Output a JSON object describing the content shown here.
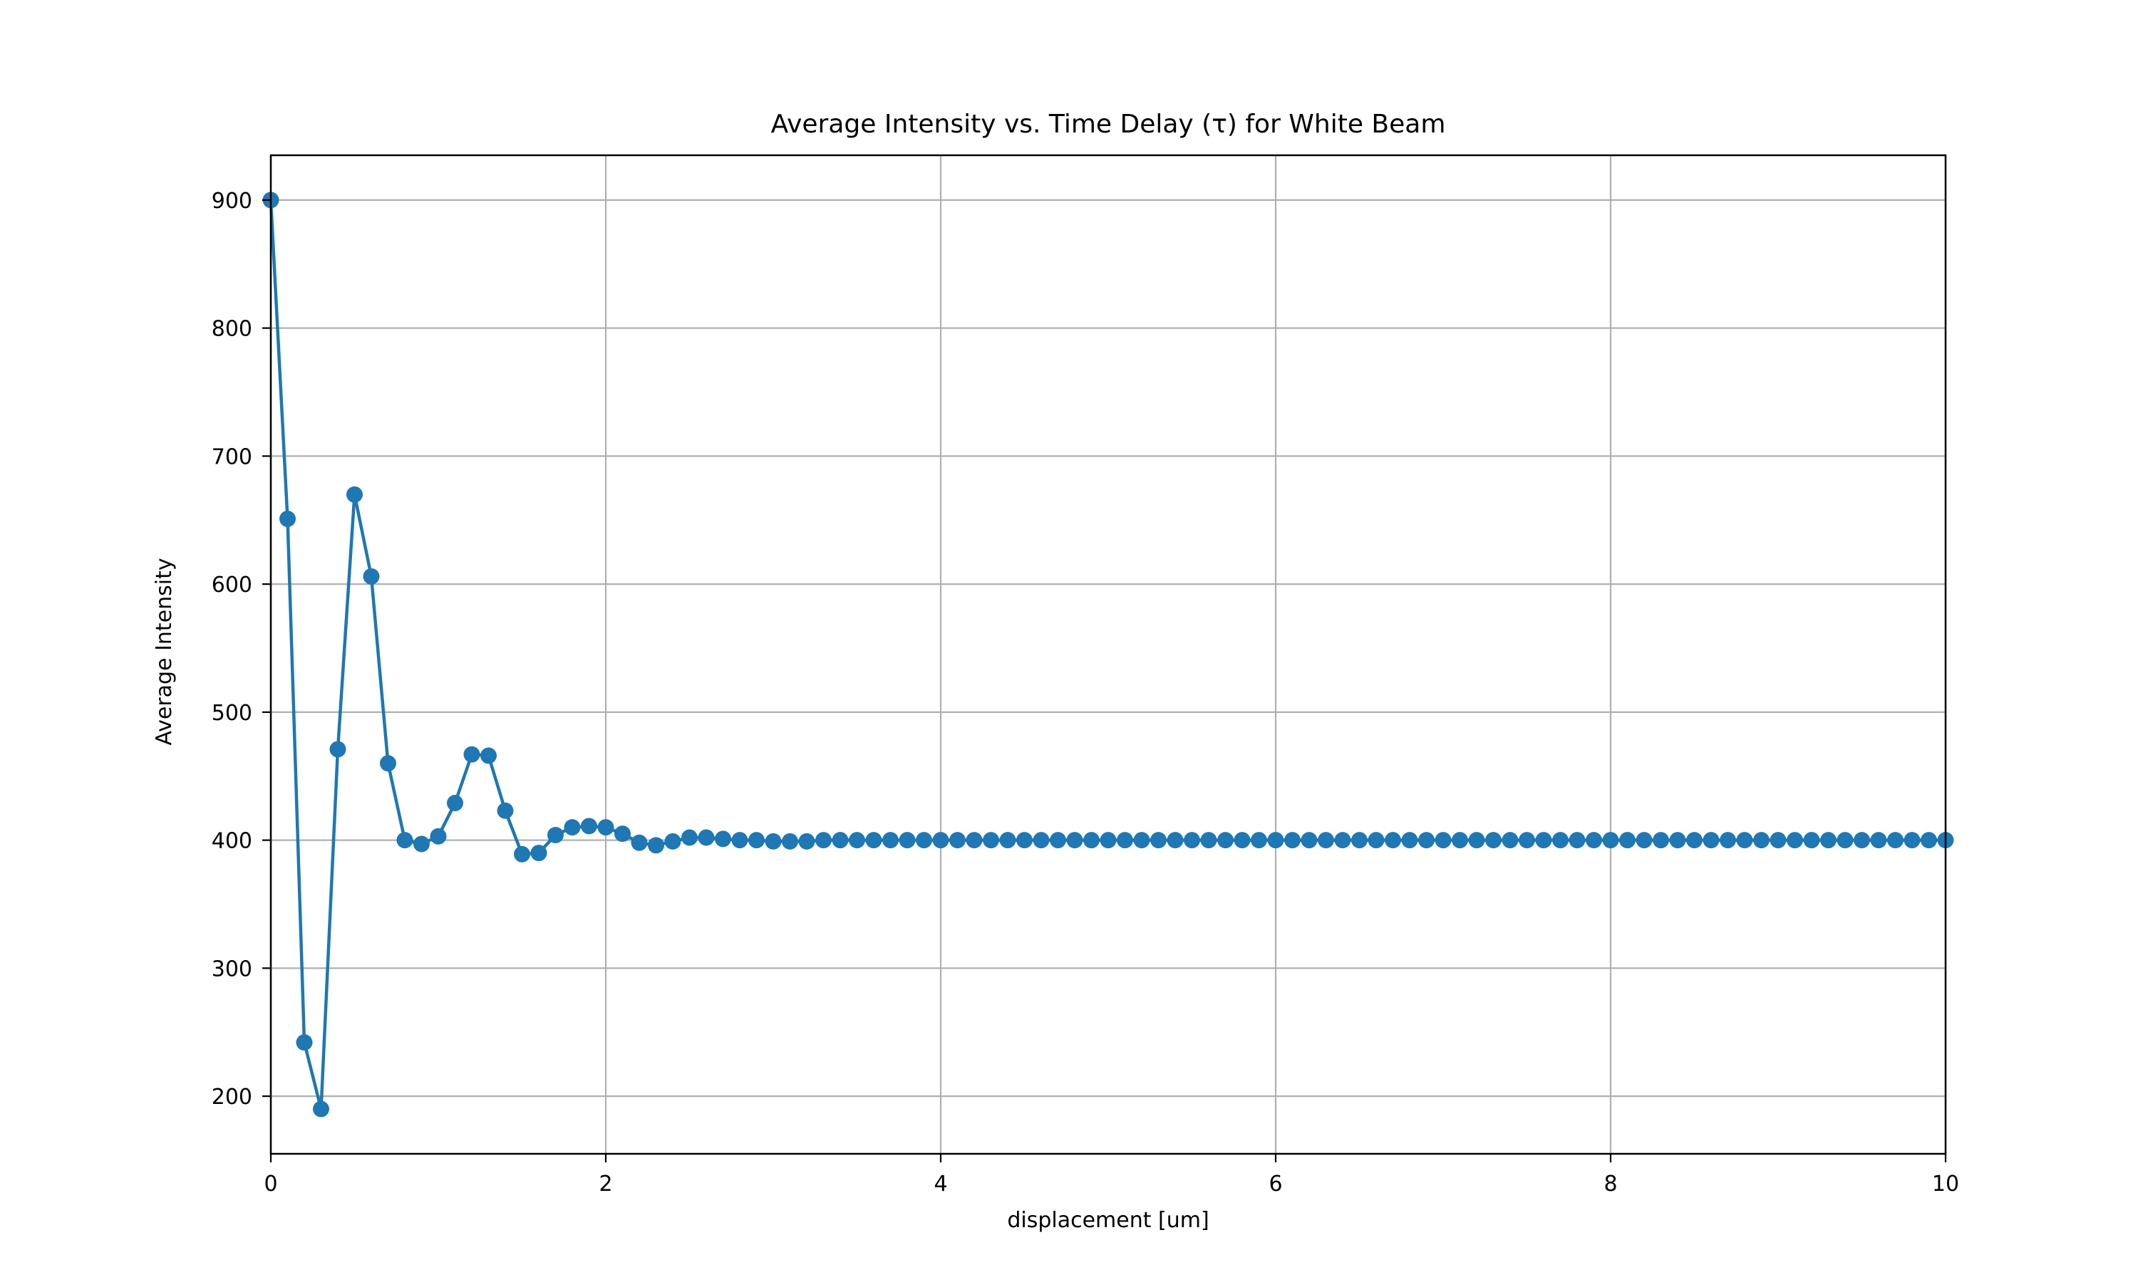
{
  "chart_data": {
    "type": "line",
    "title": "Average Intensity vs. Time Delay (τ) for White Beam",
    "xlabel": "displacement [um]",
    "ylabel": "Average Intensity",
    "xlim": [
      0,
      10
    ],
    "ylim": [
      155,
      935
    ],
    "xticks": [
      0,
      2,
      4,
      6,
      8,
      10
    ],
    "yticks": [
      200,
      300,
      400,
      500,
      600,
      700,
      800,
      900
    ],
    "grid": true,
    "series": [
      {
        "color": "#1f77b4",
        "marker": "circle",
        "x": [
          0.0,
          0.1,
          0.2,
          0.3,
          0.4,
          0.5,
          0.6,
          0.7,
          0.8,
          0.9,
          1.0,
          1.1,
          1.2,
          1.3,
          1.4,
          1.5,
          1.6,
          1.7,
          1.8,
          1.9,
          2.0,
          2.1,
          2.2,
          2.3,
          2.4,
          2.5,
          2.6,
          2.7,
          2.8,
          2.9,
          3.0,
          3.1,
          3.2,
          3.3,
          3.4,
          3.5,
          3.6,
          3.7,
          3.8,
          3.9,
          4.0,
          4.1,
          4.2,
          4.3,
          4.4,
          4.5,
          4.6,
          4.7,
          4.8,
          4.9,
          5.0,
          5.1,
          5.2,
          5.3,
          5.4,
          5.5,
          5.6,
          5.7,
          5.8,
          5.9,
          6.0,
          6.1,
          6.2,
          6.3,
          6.4,
          6.5,
          6.6,
          6.7,
          6.8,
          6.9,
          7.0,
          7.1,
          7.2,
          7.3,
          7.4,
          7.5,
          7.6,
          7.7,
          7.8,
          7.9,
          8.0,
          8.1,
          8.2,
          8.3,
          8.4,
          8.5,
          8.6,
          8.7,
          8.8,
          8.9,
          9.0,
          9.1,
          9.2,
          9.3,
          9.4,
          9.5,
          9.6,
          9.7,
          9.8,
          9.9,
          10.0
        ],
        "y": [
          900,
          651,
          242,
          190,
          471,
          670,
          606,
          460,
          400,
          397,
          403,
          429,
          467,
          466,
          423,
          389,
          390,
          404,
          410,
          411,
          410,
          405,
          398,
          396,
          399,
          402,
          402,
          401,
          400,
          400,
          399,
          399,
          399,
          400,
          400,
          400,
          400,
          400,
          400,
          400,
          400,
          400,
          400,
          400,
          400,
          400,
          400,
          400,
          400,
          400,
          400,
          400,
          400,
          400,
          400,
          400,
          400,
          400,
          400,
          400,
          400,
          400,
          400,
          400,
          400,
          400,
          400,
          400,
          400,
          400,
          400,
          400,
          400,
          400,
          400,
          400,
          400,
          400,
          400,
          400,
          400,
          400,
          400,
          400,
          400,
          400,
          400,
          400,
          400,
          400,
          400,
          400,
          400,
          400,
          400,
          400,
          400,
          400,
          400,
          400,
          400
        ]
      }
    ]
  }
}
